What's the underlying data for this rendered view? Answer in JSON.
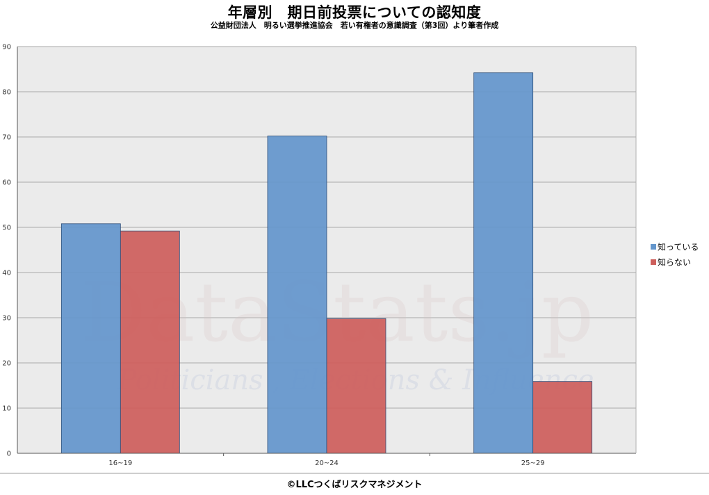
{
  "chart_data": {
    "type": "bar",
    "title": "年層別　期日前投票についての認知度",
    "subtitle": "公益財団法人　明るい選挙推進協会　若い有権者の意識調査（第3回）より筆者作成",
    "categories": [
      "16~19",
      "20~24",
      "25~29"
    ],
    "series": [
      {
        "name": "知っている",
        "values": [
          50.8,
          70.2,
          84.2
        ],
        "color": "#6496cc"
      },
      {
        "name": "知らない",
        "values": [
          49.2,
          29.8,
          15.9
        ],
        "color": "#cd5f5c"
      }
    ],
    "ylim": [
      0,
      90
    ],
    "yticks": [
      0,
      10,
      20,
      30,
      40,
      50,
      60,
      70,
      80,
      90
    ],
    "xlabel": "",
    "ylabel": "",
    "grid": true,
    "legend_position": "right",
    "plot_background": "#ebebeb"
  },
  "watermark": {
    "main": "DataStats.jp",
    "sub": "Politicians , Elections & Influence"
  },
  "footer": "©LLCつくばリスクマネジメント"
}
